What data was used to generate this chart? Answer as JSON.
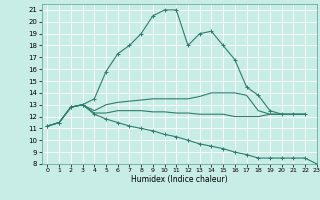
{
  "xlabel": "Humidex (Indice chaleur)",
  "ylabel": "",
  "xlim": [
    -0.5,
    23
  ],
  "ylim": [
    8,
    21.5
  ],
  "yticks": [
    8,
    9,
    10,
    11,
    12,
    13,
    14,
    15,
    16,
    17,
    18,
    19,
    20,
    21
  ],
  "xticks": [
    0,
    1,
    2,
    3,
    4,
    5,
    6,
    7,
    8,
    9,
    10,
    11,
    12,
    13,
    14,
    15,
    16,
    17,
    18,
    19,
    20,
    21,
    22,
    23
  ],
  "bg_color": "#c8ece6",
  "grid_color": "#ffffff",
  "line_color": "#2e7d6e",
  "lines": [
    {
      "x": [
        0,
        1,
        2,
        3,
        4,
        5,
        6,
        7,
        8,
        9,
        10,
        11,
        12,
        13,
        14,
        15,
        16,
        17,
        18,
        19,
        20,
        21,
        22
      ],
      "y": [
        11.2,
        11.5,
        12.8,
        13.0,
        13.5,
        15.8,
        17.3,
        18.0,
        19.0,
        20.5,
        21.0,
        21.0,
        18.0,
        19.0,
        19.2,
        18.0,
        16.8,
        14.5,
        13.8,
        12.5,
        12.2,
        12.2,
        12.2
      ],
      "marker": "+"
    },
    {
      "x": [
        0,
        1,
        2,
        3,
        4,
        5,
        6,
        7,
        8,
        9,
        10,
        11,
        12,
        13,
        14,
        15,
        16,
        17,
        18,
        19,
        20,
        21,
        22
      ],
      "y": [
        11.2,
        11.5,
        12.8,
        13.0,
        12.5,
        13.0,
        13.2,
        13.3,
        13.4,
        13.5,
        13.5,
        13.5,
        13.5,
        13.7,
        14.0,
        14.0,
        14.0,
        13.8,
        12.5,
        12.2,
        12.2,
        12.2,
        12.2
      ],
      "marker": null
    },
    {
      "x": [
        0,
        1,
        2,
        3,
        4,
        5,
        6,
        7,
        8,
        9,
        10,
        11,
        12,
        13,
        14,
        15,
        16,
        17,
        18,
        19,
        20,
        21,
        22
      ],
      "y": [
        11.2,
        11.5,
        12.8,
        13.0,
        12.3,
        12.3,
        12.5,
        12.5,
        12.5,
        12.4,
        12.4,
        12.3,
        12.3,
        12.2,
        12.2,
        12.2,
        12.0,
        12.0,
        12.0,
        12.2,
        12.2,
        12.2,
        12.2
      ],
      "marker": null
    },
    {
      "x": [
        0,
        1,
        2,
        3,
        4,
        5,
        6,
        7,
        8,
        9,
        10,
        11,
        12,
        13,
        14,
        15,
        16,
        17,
        18,
        19,
        20,
        21,
        22,
        23
      ],
      "y": [
        11.2,
        11.5,
        12.8,
        13.0,
        12.2,
        11.8,
        11.5,
        11.2,
        11.0,
        10.8,
        10.5,
        10.3,
        10.0,
        9.7,
        9.5,
        9.3,
        9.0,
        8.8,
        8.5,
        8.5,
        8.5,
        8.5,
        8.5,
        8.0
      ],
      "marker": "+"
    }
  ]
}
